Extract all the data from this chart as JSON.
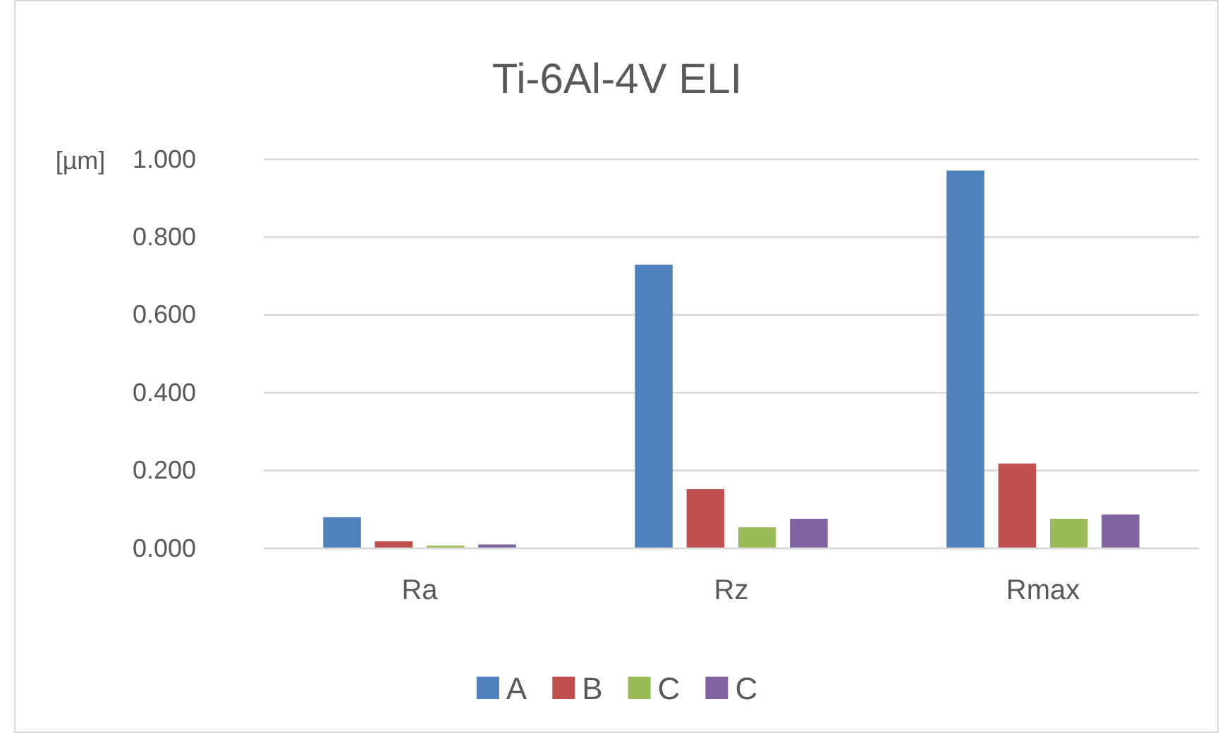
{
  "chart_data": {
    "type": "bar",
    "title": "Ti-6Al-4V ELI",
    "ylabel": "[µm]",
    "categories": [
      "Ra",
      "Rz",
      "Rmax"
    ],
    "series": [
      {
        "name": "A",
        "color": "#4f81bd",
        "values": [
          0.08,
          0.729,
          0.971
        ]
      },
      {
        "name": "B",
        "color": "#c0504d",
        "values": [
          0.018,
          0.152,
          0.218
        ]
      },
      {
        "name": "C",
        "color": "#9bbb59",
        "values": [
          0.007,
          0.054,
          0.076
        ]
      },
      {
        "name": "C",
        "color": "#8064a2",
        "values": [
          0.01,
          0.076,
          0.087
        ]
      }
    ],
    "ylim": [
      0,
      1
    ],
    "yticks": [
      {
        "value": 0,
        "label": "0.000"
      },
      {
        "value": 0.2,
        "label": "0.200"
      },
      {
        "value": 0.4,
        "label": "0.400"
      },
      {
        "value": 0.6,
        "label": "0.600"
      },
      {
        "value": 0.8,
        "label": "0.800"
      },
      {
        "value": 1,
        "label": "1.000"
      }
    ],
    "grid": "y",
    "legend": "bottom"
  }
}
